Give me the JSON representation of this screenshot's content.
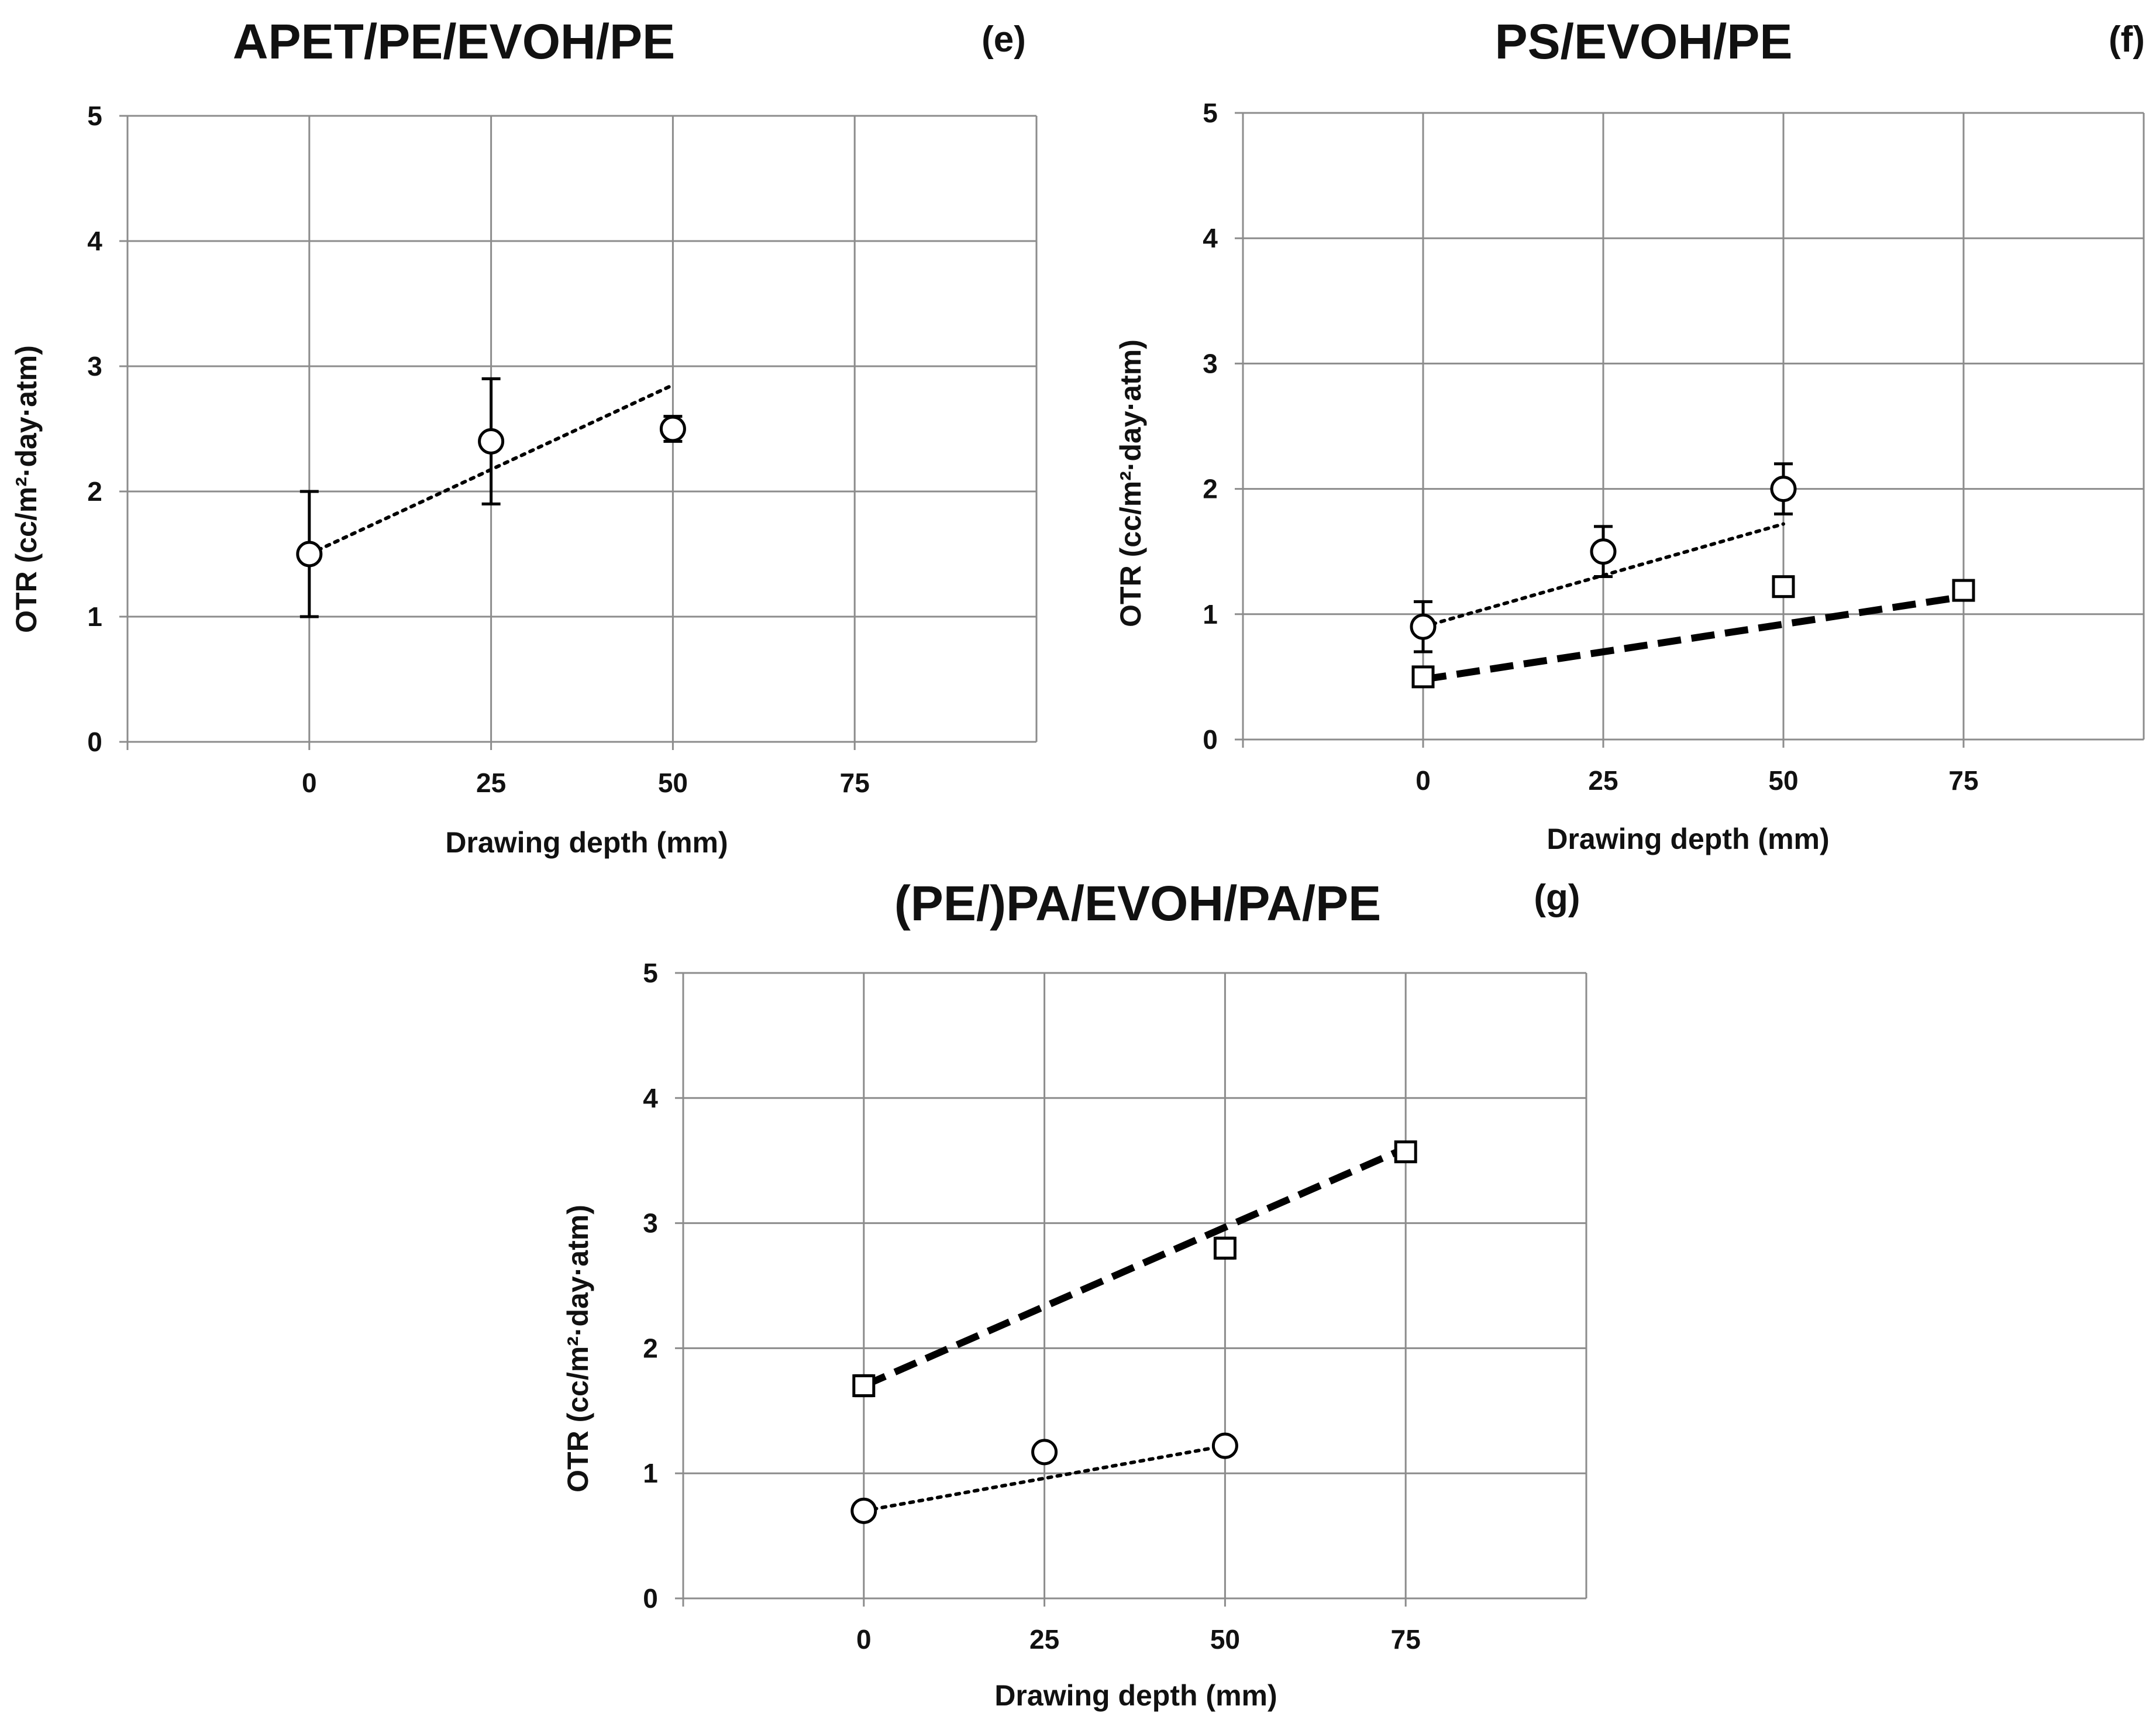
{
  "chart_data": [
    {
      "id": "e",
      "type": "scatter",
      "title": "APET/PE/EVOH/PE",
      "panel_label": "(e)",
      "xlabel": "Drawing depth (mm)",
      "ylabel": "OTR (cc/m²·day·atm)",
      "x_ticks": [
        0,
        25,
        50,
        75
      ],
      "y_ticks": [
        0,
        1,
        2,
        3,
        4,
        5
      ],
      "xlim": [
        -25,
        100
      ],
      "ylim": [
        0,
        5
      ],
      "grid": true,
      "series": [
        {
          "name": "circle",
          "marker": "circle",
          "x": [
            0,
            25,
            50
          ],
          "y": [
            1.5,
            2.4,
            2.5
          ],
          "error": [
            0.5,
            0.5,
            0.1
          ],
          "trendline": {
            "style": "dotted",
            "x": [
              0,
              50
            ],
            "y": [
              1.5,
              2.85
            ]
          }
        }
      ]
    },
    {
      "id": "f",
      "type": "scatter",
      "title": "PS/EVOH/PE",
      "panel_label": "(f)",
      "xlabel": "Drawing depth (mm)",
      "ylabel": "OTR (cc/m²·day·atm)",
      "x_ticks": [
        0,
        25,
        50,
        75
      ],
      "y_ticks": [
        0,
        1,
        2,
        3,
        4,
        5
      ],
      "xlim": [
        -25,
        100
      ],
      "ylim": [
        0,
        5
      ],
      "grid": true,
      "series": [
        {
          "name": "circle",
          "marker": "circle",
          "x": [
            0,
            25,
            50
          ],
          "y": [
            0.9,
            1.5,
            2.0
          ],
          "error": [
            0.2,
            0.2,
            0.2
          ],
          "trendline": {
            "style": "dotted",
            "x": [
              0,
              50
            ],
            "y": [
              0.9,
              1.72
            ]
          }
        },
        {
          "name": "square",
          "marker": "square",
          "x": [
            0,
            50,
            75
          ],
          "y": [
            0.5,
            1.22,
            1.19
          ],
          "error": [
            0,
            0,
            0
          ],
          "trendline": {
            "style": "dashed",
            "x": [
              0,
              75
            ],
            "y": [
              0.48,
              1.14
            ]
          }
        }
      ]
    },
    {
      "id": "g",
      "type": "scatter",
      "title": "(PE/)PA/EVOH/PA/PE",
      "panel_label": "(g)",
      "xlabel": "Drawing depth (mm)",
      "ylabel": "OTR (cc/m²·day·atm)",
      "x_ticks": [
        0,
        25,
        50,
        75
      ],
      "y_ticks": [
        0,
        1,
        2,
        3,
        4,
        5
      ],
      "xlim": [
        -25,
        100
      ],
      "ylim": [
        0,
        5
      ],
      "grid": true,
      "series": [
        {
          "name": "square",
          "marker": "square",
          "x": [
            0,
            50,
            75
          ],
          "y": [
            1.7,
            2.8,
            3.57
          ],
          "error": [
            0.08,
            0.08,
            0
          ],
          "trendline": {
            "style": "dashed",
            "x": [
              0,
              75
            ],
            "y": [
              1.7,
              3.6
            ]
          }
        },
        {
          "name": "circle",
          "marker": "circle",
          "x": [
            0,
            25,
            50
          ],
          "y": [
            0.7,
            1.17,
            1.22
          ],
          "error": [
            0,
            0,
            0
          ],
          "trendline": {
            "style": "dotted",
            "x": [
              0,
              50
            ],
            "y": [
              0.7,
              1.22
            ]
          }
        }
      ]
    }
  ]
}
